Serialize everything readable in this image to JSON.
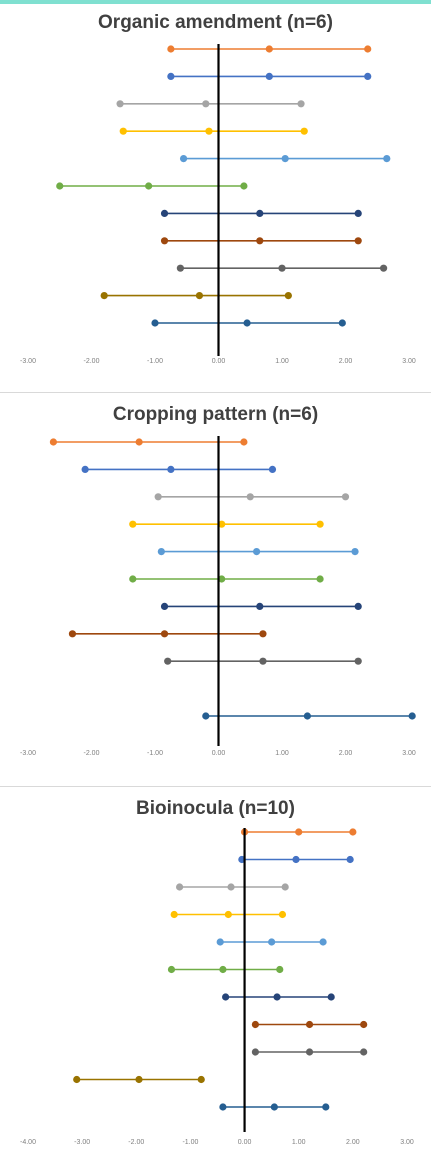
{
  "accent_color": "#7fe0d0",
  "chart_data": [
    {
      "type": "scatter",
      "subtype": "interval-plot",
      "title": "Organic amendment (n=6)",
      "xlim": [
        -3,
        3
      ],
      "xticks": [
        "-3.00",
        "-2.00",
        "-1.00",
        "0.00",
        "1.00",
        "2.00",
        "3.00"
      ],
      "grid": false,
      "legend": "none",
      "series": [
        {
          "color": "#ed7d31",
          "low": -0.75,
          "mid": 0.8,
          "high": 2.35
        },
        {
          "color": "#4472c4",
          "low": -0.75,
          "mid": 0.8,
          "high": 2.35
        },
        {
          "color": "#a5a5a5",
          "low": -1.55,
          "mid": -0.2,
          "high": 1.3
        },
        {
          "color": "#ffc000",
          "low": -1.5,
          "mid": -0.15,
          "high": 1.35
        },
        {
          "color": "#5b9bd5",
          "low": -0.55,
          "mid": 1.05,
          "high": 2.65
        },
        {
          "color": "#70ad47",
          "low": -2.5,
          "mid": -1.1,
          "high": 0.4
        },
        {
          "color": "#264478",
          "low": -0.85,
          "mid": 0.65,
          "high": 2.2
        },
        {
          "color": "#9e480e",
          "low": -0.85,
          "mid": 0.65,
          "high": 2.2
        },
        {
          "color": "#636363",
          "low": -0.6,
          "mid": 1.0,
          "high": 2.6
        },
        {
          "color": "#997300",
          "low": -1.8,
          "mid": -0.3,
          "high": 1.1
        },
        {
          "color": "#255e91",
          "low": -1.0,
          "mid": 0.45,
          "high": 1.95
        }
      ]
    },
    {
      "type": "scatter",
      "subtype": "interval-plot",
      "title": "Cropping pattern (n=6)",
      "xlim": [
        -3,
        3
      ],
      "xticks": [
        "-3.00",
        "-2.00",
        "-1.00",
        "0.00",
        "1.00",
        "2.00",
        "3.00"
      ],
      "grid": false,
      "legend": "none",
      "series": [
        {
          "color": "#ed7d31",
          "low": -2.6,
          "mid": -1.25,
          "high": 0.4
        },
        {
          "color": "#4472c4",
          "low": -2.1,
          "mid": -0.75,
          "high": 0.85
        },
        {
          "color": "#a5a5a5",
          "low": -0.95,
          "mid": 0.5,
          "high": 2.0
        },
        {
          "color": "#ffc000",
          "low": -1.35,
          "mid": 0.05,
          "high": 1.6
        },
        {
          "color": "#5b9bd5",
          "low": -0.9,
          "mid": 0.6,
          "high": 2.15
        },
        {
          "color": "#70ad47",
          "low": -1.35,
          "mid": 0.05,
          "high": 1.6
        },
        {
          "color": "#264478",
          "low": -0.85,
          "mid": 0.65,
          "high": 2.2
        },
        {
          "color": "#9e480e",
          "low": -2.3,
          "mid": -0.85,
          "high": 0.7
        },
        {
          "color": "#636363",
          "low": -0.8,
          "mid": 0.7,
          "high": 2.2
        },
        {
          "color": "#255e91",
          "low": -0.2,
          "mid": 1.4,
          "high": 3.05
        }
      ]
    },
    {
      "type": "scatter",
      "subtype": "interval-plot",
      "title": "Bioinocula (n=10)",
      "xlim": [
        -4,
        3
      ],
      "xticks": [
        "-4.00",
        "-3.00",
        "-2.00",
        "-1.00",
        "0.00",
        "1.00",
        "2.00",
        "3.00"
      ],
      "grid": false,
      "legend": "none",
      "series": [
        {
          "color": "#ed7d31",
          "low": 0.0,
          "mid": 1.0,
          "high": 2.0
        },
        {
          "color": "#4472c4",
          "low": -0.05,
          "mid": 0.95,
          "high": 1.95
        },
        {
          "color": "#a5a5a5",
          "low": -1.2,
          "mid": -0.25,
          "high": 0.75
        },
        {
          "color": "#ffc000",
          "low": -1.3,
          "mid": -0.3,
          "high": 0.7
        },
        {
          "color": "#5b9bd5",
          "low": -0.45,
          "mid": 0.5,
          "high": 1.45
        },
        {
          "color": "#70ad47",
          "low": -1.35,
          "mid": -0.4,
          "high": 0.65
        },
        {
          "color": "#264478",
          "low": -0.35,
          "mid": 0.6,
          "high": 1.6
        },
        {
          "color": "#9e480e",
          "low": 0.2,
          "mid": 1.2,
          "high": 2.2
        },
        {
          "color": "#636363",
          "low": 0.2,
          "mid": 1.2,
          "high": 2.2
        },
        {
          "color": "#997300",
          "low": -3.1,
          "mid": -1.95,
          "high": -0.8
        },
        {
          "color": "#255e91",
          "low": -0.4,
          "mid": 0.55,
          "high": 1.5
        }
      ]
    }
  ]
}
